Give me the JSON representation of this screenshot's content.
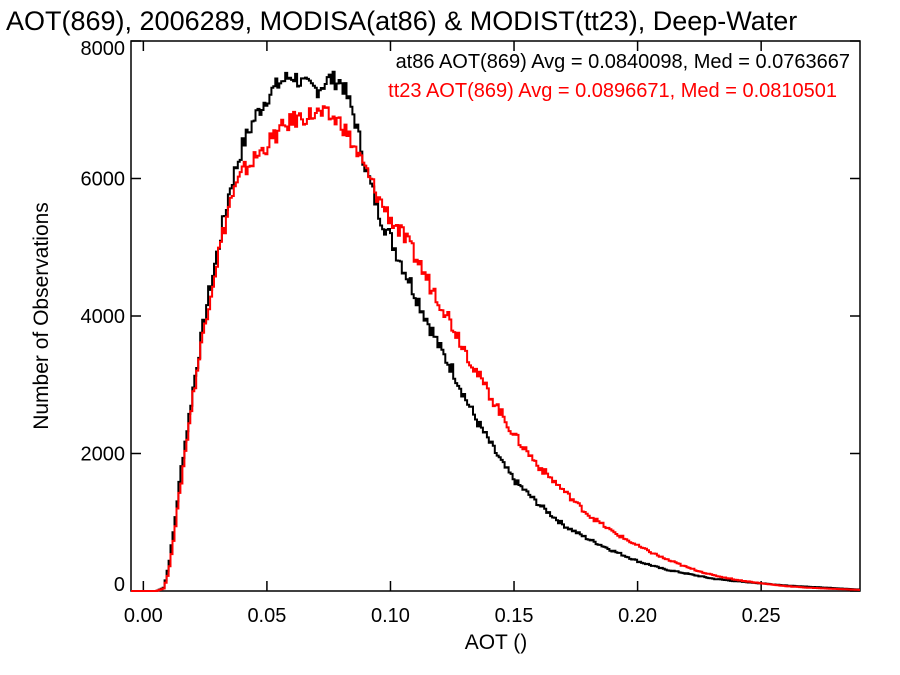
{
  "chart_data": {
    "type": "line",
    "title": "AOT(869), 2006289, MODISA(at86) & MODIST(tt23), Deep-Water",
    "xlabel": "AOT ()",
    "ylabel": "Number of Observations",
    "xlim": [
      -0.005,
      0.29
    ],
    "ylim": [
      0,
      8000
    ],
    "x_ticks": [
      "0.00",
      "0.05",
      "0.10",
      "0.15",
      "0.20",
      "0.25"
    ],
    "x_tick_values": [
      0.0,
      0.05,
      0.1,
      0.15,
      0.2,
      0.25
    ],
    "y_ticks": [
      "0",
      "2000",
      "4000",
      "6000",
      "8000"
    ],
    "y_tick_values": [
      0,
      2000,
      4000,
      6000,
      8000
    ],
    "grid": false,
    "annotations": [
      {
        "text": "at86 AOT(869) Avg = 0.0840098, Med = 0.0763667",
        "color": "#000000"
      },
      {
        "text": "tt23 AOT(869) Avg = 0.0896671, Med = 0.0810501",
        "color": "#ff0000"
      }
    ],
    "series": [
      {
        "color": "#000000",
        "x": [
          -0.005,
          0.0,
          0.005,
          0.008,
          0.01,
          0.012,
          0.015,
          0.018,
          0.02,
          0.025,
          0.03,
          0.035,
          0.04,
          0.045,
          0.05,
          0.055,
          0.06,
          0.065,
          0.07,
          0.075,
          0.08,
          0.085,
          0.09,
          0.095,
          0.1,
          0.105,
          0.11,
          0.115,
          0.12,
          0.125,
          0.13,
          0.135,
          0.14,
          0.145,
          0.15,
          0.16,
          0.17,
          0.18,
          0.19,
          0.2,
          0.21,
          0.22,
          0.23,
          0.24,
          0.25,
          0.26,
          0.27,
          0.28,
          0.29
        ],
        "y": [
          0,
          0,
          0,
          50,
          400,
          900,
          1800,
          2500,
          3000,
          4100,
          5000,
          5900,
          6500,
          6900,
          7200,
          7400,
          7500,
          7350,
          7300,
          7450,
          7400,
          6900,
          6100,
          5500,
          5100,
          4700,
          4300,
          3900,
          3500,
          3200,
          2800,
          2450,
          2150,
          1850,
          1600,
          1250,
          950,
          750,
          580,
          430,
          320,
          250,
          180,
          140,
          110,
          80,
          60,
          40,
          20
        ]
      },
      {
        "color": "#ff0000",
        "x": [
          -0.005,
          0.0,
          0.005,
          0.008,
          0.01,
          0.012,
          0.015,
          0.018,
          0.02,
          0.025,
          0.03,
          0.035,
          0.04,
          0.045,
          0.05,
          0.055,
          0.06,
          0.065,
          0.07,
          0.075,
          0.08,
          0.085,
          0.09,
          0.095,
          0.1,
          0.105,
          0.11,
          0.115,
          0.12,
          0.125,
          0.13,
          0.135,
          0.14,
          0.145,
          0.15,
          0.16,
          0.17,
          0.18,
          0.19,
          0.2,
          0.21,
          0.22,
          0.23,
          0.24,
          0.25,
          0.26,
          0.27,
          0.28,
          0.29
        ],
        "y": [
          0,
          0,
          0,
          40,
          300,
          800,
          1600,
          2400,
          2900,
          4000,
          4900,
          5700,
          6100,
          6300,
          6500,
          6700,
          6850,
          6900,
          6950,
          6900,
          6800,
          6450,
          6100,
          5700,
          5400,
          5150,
          4850,
          4500,
          4200,
          3850,
          3500,
          3150,
          2850,
          2550,
          2250,
          1800,
          1450,
          1100,
          850,
          650,
          480,
          340,
          230,
          160,
          110,
          70,
          45,
          30,
          15
        ]
      }
    ]
  }
}
